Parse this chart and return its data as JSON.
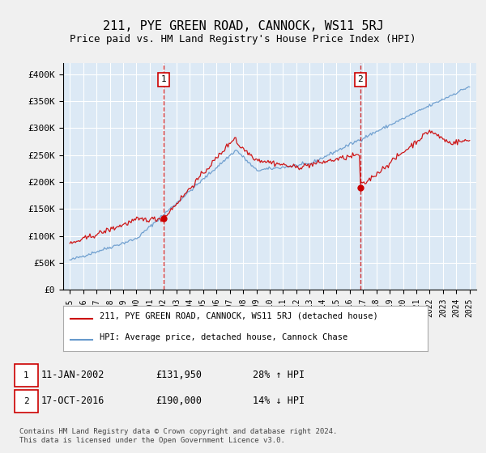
{
  "title": "211, PYE GREEN ROAD, CANNOCK, WS11 5RJ",
  "subtitle": "Price paid vs. HM Land Registry's House Price Index (HPI)",
  "bg_color": "#dce9f5",
  "grid_color": "#ffffff",
  "red_color": "#cc0000",
  "blue_color": "#6699cc",
  "fig_bg": "#f0f0f0",
  "marker1_date": 2002.03,
  "marker2_date": 2016.8,
  "legend_line1": "211, PYE GREEN ROAD, CANNOCK, WS11 5RJ (detached house)",
  "legend_line2": "HPI: Average price, detached house, Cannock Chase",
  "footer": "Contains HM Land Registry data © Crown copyright and database right 2024.\nThis data is licensed under the Open Government Licence v3.0.",
  "ylim": [
    0,
    420000
  ],
  "yticks": [
    0,
    50000,
    100000,
    150000,
    200000,
    250000,
    300000,
    350000,
    400000
  ],
  "ytick_labels": [
    "£0",
    "£50K",
    "£100K",
    "£150K",
    "£200K",
    "£250K",
    "£300K",
    "£350K",
    "£400K"
  ],
  "xtick_years": [
    1995,
    1996,
    1997,
    1998,
    1999,
    2000,
    2001,
    2002,
    2003,
    2004,
    2005,
    2006,
    2007,
    2008,
    2009,
    2010,
    2011,
    2012,
    2013,
    2014,
    2015,
    2016,
    2017,
    2018,
    2019,
    2020,
    2021,
    2022,
    2023,
    2024,
    2025
  ],
  "ann1_date": "11-JAN-2002",
  "ann1_price": "£131,950",
  "ann1_hpi": "28% ↑ HPI",
  "ann2_date": "17-OCT-2016",
  "ann2_price": "£190,000",
  "ann2_hpi": "14% ↓ HPI"
}
